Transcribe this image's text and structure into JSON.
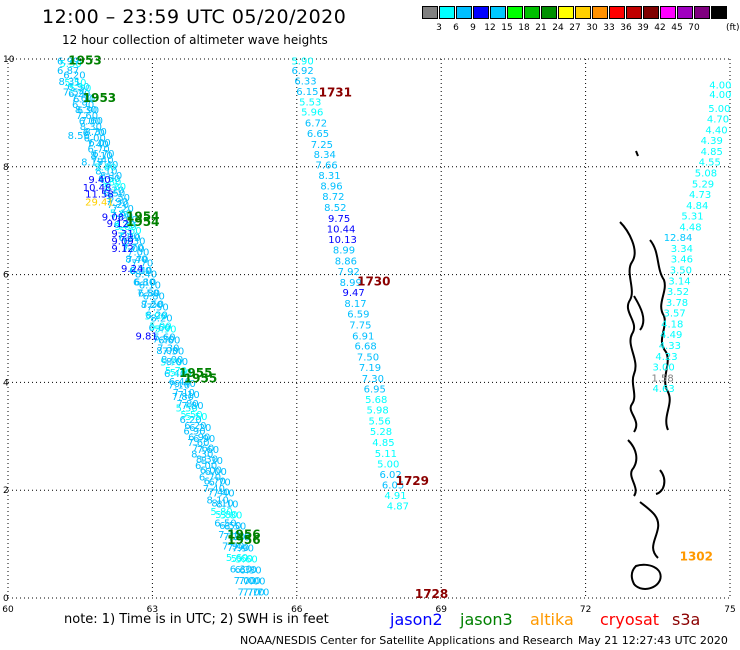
{
  "header": {
    "title": "12:00 – 23:59 UTC 05/20/2020",
    "subtitle": "12 hour collection of altimeter wave heights"
  },
  "scale": {
    "colors": [
      "#808080",
      "#00ffff",
      "#00bfff",
      "#0000ff",
      "#00c8ff",
      "#00ff00",
      "#00c000",
      "#009000",
      "#ffff00",
      "#ffd000",
      "#ff9000",
      "#ff0000",
      "#c00000",
      "#800000",
      "#ff00ff",
      "#a000c0",
      "#800080",
      "#000000"
    ],
    "labels": [
      "3",
      "6",
      "9",
      "12",
      "15",
      "18",
      "21",
      "24",
      "27",
      "30",
      "33",
      "36",
      "39",
      "42",
      "45",
      "70"
    ],
    "unit": "(ft)"
  },
  "footer": {
    "note": "note:  1) Time is in UTC;  2) SWH is in feet",
    "legend": [
      {
        "name": "jason2",
        "color": "#0000ff"
      },
      {
        "name": "jason3",
        "color": "#008000"
      },
      {
        "name": "altika",
        "color": "#ff9900"
      },
      {
        "name": "cryosat",
        "color": "#ff0000"
      },
      {
        "name": "s3a",
        "color": "#8b0000"
      }
    ],
    "credit": "NOAA/NESDIS Center for Satellite Applications and Research",
    "timestamp": "May 21 12:27:43 UTC 2020"
  },
  "chart_data": {
    "type": "scatter",
    "title": "12:00 – 23:59 UTC 05/20/2020",
    "xlabel": "",
    "ylabel": "",
    "xlim": [
      60,
      75
    ],
    "ylim": [
      0,
      10
    ],
    "x_ticks": [
      "60",
      "63",
      "66",
      "69",
      "72",
      "75"
    ],
    "y_ticks": [
      "0",
      "2",
      "4",
      "6",
      "8",
      "10"
    ],
    "grid": true,
    "track_times": [
      {
        "label": "1953",
        "x": 61.6,
        "y": 9.9,
        "color": "#008000"
      },
      {
        "label": "1953",
        "x": 61.9,
        "y": 9.2,
        "color": "#008000"
      },
      {
        "label": "1954",
        "x": 62.8,
        "y": 7.0,
        "color": "#008000"
      },
      {
        "label": "1954",
        "x": 62.8,
        "y": 6.9,
        "color": "#008000"
      },
      {
        "label": "1955",
        "x": 63.9,
        "y": 4.1,
        "color": "#008000"
      },
      {
        "label": "1955",
        "x": 64.0,
        "y": 4.0,
        "color": "#008000"
      },
      {
        "label": "1956",
        "x": 64.9,
        "y": 1.1,
        "color": "#008000"
      },
      {
        "label": "1956",
        "x": 64.9,
        "y": 1.0,
        "color": "#008000"
      },
      {
        "label": "1731",
        "x": 66.8,
        "y": 9.3,
        "color": "#8b0000"
      },
      {
        "label": "1730",
        "x": 67.6,
        "y": 5.8,
        "color": "#8b0000"
      },
      {
        "label": "1729",
        "x": 68.4,
        "y": 2.1,
        "color": "#8b0000"
      },
      {
        "label": "1728",
        "x": 68.8,
        "y": 0.0,
        "color": "#8b0000"
      },
      {
        "label": "1302",
        "x": 74.3,
        "y": 0.7,
        "color": "#ff9900"
      }
    ],
    "series": [
      {
        "name": "jason3",
        "points": [
          [
            61.25,
            9.9,
            6.99
          ],
          [
            61.25,
            9.72,
            6.87
          ],
          [
            61.28,
            9.52,
            8.31
          ],
          [
            61.37,
            9.32,
            7.54
          ],
          [
            61.47,
            8.52,
            8.56
          ],
          [
            61.75,
            8.02,
            8.19
          ],
          [
            61.9,
            7.7,
            9.4
          ],
          [
            61.85,
            7.55,
            10.48
          ],
          [
            61.9,
            7.43,
            11.58
          ],
          [
            61.9,
            7.28,
            29.41
          ],
          [
            62.18,
            7.0,
            9.08
          ],
          [
            62.28,
            6.88,
            9.12
          ],
          [
            62.38,
            6.7,
            9.31
          ],
          [
            62.38,
            6.56,
            9.09
          ],
          [
            62.38,
            6.42,
            9.12
          ],
          [
            62.58,
            6.05,
            9.24
          ],
          [
            62.88,
            4.8,
            9.81
          ]
        ]
      },
      {
        "name": "s3a",
        "points": [
          [
            66.12,
            9.9,
            5.9
          ],
          [
            66.12,
            9.72,
            6.92
          ],
          [
            66.18,
            9.53,
            6.33
          ],
          [
            66.22,
            9.33,
            6.15
          ],
          [
            66.28,
            9.14,
            5.53
          ],
          [
            66.32,
            8.95,
            5.96
          ],
          [
            66.4,
            8.75,
            6.72
          ],
          [
            66.44,
            8.55,
            6.65
          ],
          [
            66.52,
            8.35,
            7.25
          ],
          [
            66.58,
            8.16,
            8.34
          ],
          [
            66.62,
            7.97,
            7.66
          ],
          [
            66.68,
            7.77,
            8.31
          ],
          [
            66.72,
            7.58,
            8.96
          ],
          [
            66.76,
            7.38,
            8.72
          ],
          [
            66.8,
            7.18,
            8.52
          ],
          [
            66.88,
            6.98,
            9.75
          ],
          [
            66.92,
            6.78,
            10.44
          ],
          [
            66.95,
            6.59,
            10.13
          ],
          [
            66.98,
            6.39,
            8.99
          ],
          [
            67.02,
            6.19,
            8.86
          ],
          [
            67.08,
            5.99,
            7.92
          ],
          [
            67.12,
            5.79,
            8.99
          ],
          [
            67.18,
            5.6,
            9.47
          ],
          [
            67.22,
            5.4,
            8.17
          ],
          [
            67.28,
            5.2,
            6.59
          ],
          [
            67.32,
            5.0,
            7.75
          ],
          [
            67.38,
            4.8,
            6.91
          ],
          [
            67.43,
            4.61,
            6.68
          ],
          [
            67.48,
            4.41,
            7.5
          ],
          [
            67.52,
            4.21,
            7.19
          ],
          [
            67.58,
            4.01,
            7.3
          ],
          [
            67.62,
            3.81,
            6.95
          ],
          [
            67.65,
            3.62,
            5.68
          ],
          [
            67.68,
            3.42,
            5.98
          ],
          [
            67.72,
            3.22,
            5.56
          ],
          [
            67.75,
            3.02,
            5.28
          ],
          [
            67.8,
            2.82,
            4.85
          ],
          [
            67.85,
            2.62,
            5.11
          ],
          [
            67.9,
            2.42,
            5.0
          ],
          [
            67.95,
            2.23,
            6.02
          ],
          [
            68.0,
            2.03,
            6.05
          ],
          [
            68.05,
            1.84,
            4.91
          ],
          [
            68.1,
            1.64,
            4.87
          ]
        ]
      },
      {
        "name": "altika",
        "points": [
          [
            74.8,
            9.45,
            4.0
          ],
          [
            74.8,
            9.28,
            4.0
          ],
          [
            74.78,
            9.02,
            5.0
          ],
          [
            74.75,
            8.82,
            4.7
          ],
          [
            74.72,
            8.62,
            4.4
          ],
          [
            74.62,
            8.42,
            4.39
          ],
          [
            74.62,
            8.22,
            4.85
          ],
          [
            74.58,
            8.02,
            4.55
          ],
          [
            74.5,
            7.82,
            5.08
          ],
          [
            74.44,
            7.62,
            5.29
          ],
          [
            74.38,
            7.42,
            4.73
          ],
          [
            74.32,
            7.22,
            4.84
          ],
          [
            74.22,
            7.02,
            5.31
          ],
          [
            74.18,
            6.82,
            4.48
          ],
          [
            73.92,
            6.62,
            12.84
          ],
          [
            74.0,
            6.42,
            3.34
          ],
          [
            74.0,
            6.22,
            3.46
          ],
          [
            73.98,
            6.02,
            3.5
          ],
          [
            73.95,
            5.82,
            3.14
          ],
          [
            73.92,
            5.62,
            3.52
          ],
          [
            73.9,
            5.42,
            3.78
          ],
          [
            73.85,
            5.22,
            3.57
          ],
          [
            73.8,
            5.02,
            4.18
          ],
          [
            73.78,
            4.82,
            4.49
          ],
          [
            73.75,
            4.62,
            4.33
          ],
          [
            73.68,
            4.42,
            4.23
          ],
          [
            73.62,
            4.22,
            3.0
          ],
          [
            73.6,
            4.02,
            1.58
          ],
          [
            73.62,
            3.82,
            4.63
          ]
        ]
      }
    ],
    "dense_tracks": [
      {
        "name": "jason3",
        "from": [
          61.3,
          9.85
        ],
        "to": [
          65.0,
          0.05
        ]
      },
      {
        "name": "jason3",
        "from": [
          61.4,
          9.5
        ],
        "to": [
          65.1,
          0.05
        ]
      },
      {
        "name": "jason3",
        "from": [
          61.5,
          9.4
        ],
        "to": [
          65.2,
          0.05
        ]
      }
    ]
  }
}
